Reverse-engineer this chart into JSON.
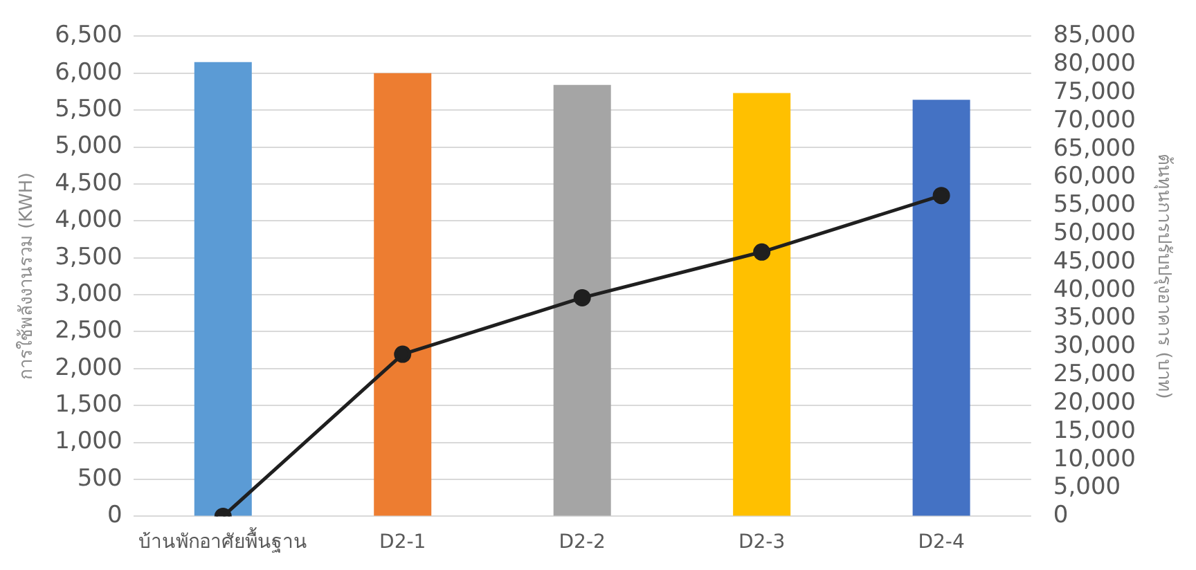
{
  "chart_data": {
    "type": "bar",
    "ylabel": "การใช้พลังงานรวม (KWH)",
    "y2label": "ต้นทุนการปรับปรุงอาคาร (บาท)",
    "categories": [
      "บ้านพักอาศัยพื้นฐาน",
      "D2-1",
      "D2-2",
      "D2-3",
      "D2-4"
    ],
    "series": [
      {
        "colors": [
          "#5b9bd5",
          "#ed7d31",
          "#a5a5a5",
          "#ffc000",
          "#4472c4"
        ],
        "values": [
          6150,
          6000,
          5840,
          5730,
          5640
        ]
      },
      {
        "type": "line",
        "axis": "y2",
        "color": "#1f1f1f",
        "values": [
          0,
          28700,
          38700,
          46800,
          56800
        ]
      }
    ],
    "ylim": [
      0,
      6500
    ],
    "yticks": [
      0,
      500,
      {
        "value": 1000,
        "label": "1,000"
      },
      {
        "value": 1500,
        "label": "1,500"
      },
      {
        "value": 2000,
        "label": "2,000"
      },
      {
        "value": 2500,
        "label": "2,500"
      },
      {
        "value": 3000,
        "label": "3,000"
      },
      {
        "value": 3500,
        "label": "3,500"
      },
      {
        "value": 4000,
        "label": "4,000"
      },
      {
        "value": 4500,
        "label": "4,500"
      },
      {
        "value": 5000,
        "label": "5,000"
      },
      {
        "value": 5500,
        "label": "5,500"
      },
      {
        "value": 6000,
        "label": "6,000"
      },
      {
        "value": 6500,
        "label": "6,500"
      }
    ],
    "y2lim": [
      0,
      85000
    ],
    "y2ticks": [
      0,
      {
        "value": 5000,
        "label": "5,000"
      },
      {
        "value": 10000,
        "label": "10,000"
      },
      {
        "value": 15000,
        "label": "15,000"
      },
      {
        "value": 20000,
        "label": "20,000"
      },
      {
        "value": 25000,
        "label": "25,000"
      },
      {
        "value": 30000,
        "label": "30,000"
      },
      {
        "value": 35000,
        "label": "35,000"
      },
      {
        "value": 40000,
        "label": "40,000"
      },
      {
        "value": 45000,
        "label": "45,000"
      },
      {
        "value": 50000,
        "label": "50,000"
      },
      {
        "value": 55000,
        "label": "55,000"
      },
      {
        "value": 60000,
        "label": "60,000"
      },
      {
        "value": 65000,
        "label": "65,000"
      },
      {
        "value": 70000,
        "label": "70,000"
      },
      {
        "value": 75000,
        "label": "75,000"
      },
      {
        "value": 80000,
        "label": "80,000"
      },
      {
        "value": 85000,
        "label": "85,000"
      }
    ],
    "grid": "y",
    "legend": false,
    "marker": "circle",
    "line_style": "solid"
  }
}
